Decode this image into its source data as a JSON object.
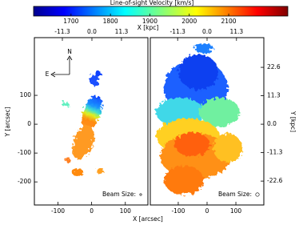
{
  "colorbar": {
    "label": "Line-of-sight Velocity [km/s]",
    "clim": [
      1605,
      2250
    ],
    "ticks": [
      1700,
      1800,
      1900,
      2000,
      2100
    ]
  },
  "x_label": "X [arcsec]",
  "x2_label": "X [kpc]",
  "chart_data": [
    {
      "type": "image",
      "ylabel": "Y [arcsec]",
      "xlim": [
        -170,
        167
      ],
      "xticks": [
        -100,
        0,
        100
      ],
      "x2lim": [
        -22.0,
        21.4
      ],
      "x2ticks": [
        -11.3,
        {
          "value": 0,
          "label": "0.0"
        },
        11.3
      ],
      "ylim": [
        -280,
        300
      ],
      "yticks": [
        -200,
        -100,
        0,
        100
      ],
      "annotation": "Beam Size:",
      "compass": [
        "N",
        "E"
      ]
    },
    {
      "type": "image",
      "y2label": "Y [kpc]",
      "xlim": [
        -197,
        197
      ],
      "xticks": [
        -100,
        0,
        100
      ],
      "x2lim": [
        -21.8,
        21.8
      ],
      "x2ticks": [
        -11.3,
        {
          "value": 0,
          "label": "0.0"
        },
        11.3
      ],
      "ylim": [
        -280,
        300
      ],
      "y2lim": [
        -32.1,
        34.4
      ],
      "y2ticks": [
        -22.6,
        -11.3,
        {
          "value": 0,
          "label": "0.0"
        },
        11.3,
        22.6
      ],
      "annotation": "Beam Size:"
    }
  ]
}
